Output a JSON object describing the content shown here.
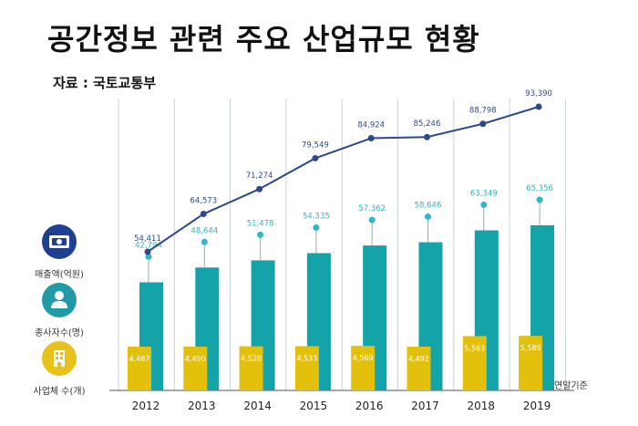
{
  "title": "공간정보 관련 주요 산업규모 현황",
  "source": "자료 : 국토교통부",
  "legend": [
    {
      "label": "매출액(억원)",
      "icon": "money-icon",
      "color": "#1f3f8f"
    },
    {
      "label": "종사자수(명)",
      "icon": "person-icon",
      "color": "#1f9aa6"
    },
    {
      "label": "사업체 수(개)",
      "icon": "building-icon",
      "color": "#e8c21a"
    }
  ],
  "footnote": "연말기준",
  "colors": {
    "revenue": "#2c4a8a",
    "employees": "#13a3a8",
    "employees_label": "#30b6c4",
    "businesses": "#e3c00b",
    "grid": "#c9d3dc"
  },
  "chart_data": {
    "type": "bar",
    "categories": [
      "2012",
      "2013",
      "2014",
      "2015",
      "2016",
      "2017",
      "2018",
      "2019"
    ],
    "series": [
      {
        "name": "매출액(억원)",
        "type": "line",
        "values": [
          54411,
          64573,
          71274,
          79549,
          84924,
          85246,
          88798,
          93390
        ],
        "labels": [
          "54,411",
          "64,573",
          "71,274",
          "79,549",
          "84,924",
          "85,246",
          "88,798",
          "93,390"
        ]
      },
      {
        "name": "종사자수(명)",
        "type": "bar",
        "values": [
          42794,
          48644,
          51478,
          54335,
          57362,
          58646,
          63349,
          65356
        ],
        "labels": [
          "42,794",
          "48,644",
          "51,478",
          "54,335",
          "57,362",
          "58,646",
          "63,349",
          "65,356"
        ]
      },
      {
        "name": "사업체 수(개)",
        "type": "bar",
        "values": [
          4487,
          4490,
          4520,
          4533,
          4569,
          4492,
          5563,
          5589
        ],
        "labels": [
          "4,487",
          "4,490",
          "4,520",
          "4,533",
          "4,569",
          "4,492",
          "5,563",
          "5,589"
        ]
      }
    ],
    "grid": true
  }
}
